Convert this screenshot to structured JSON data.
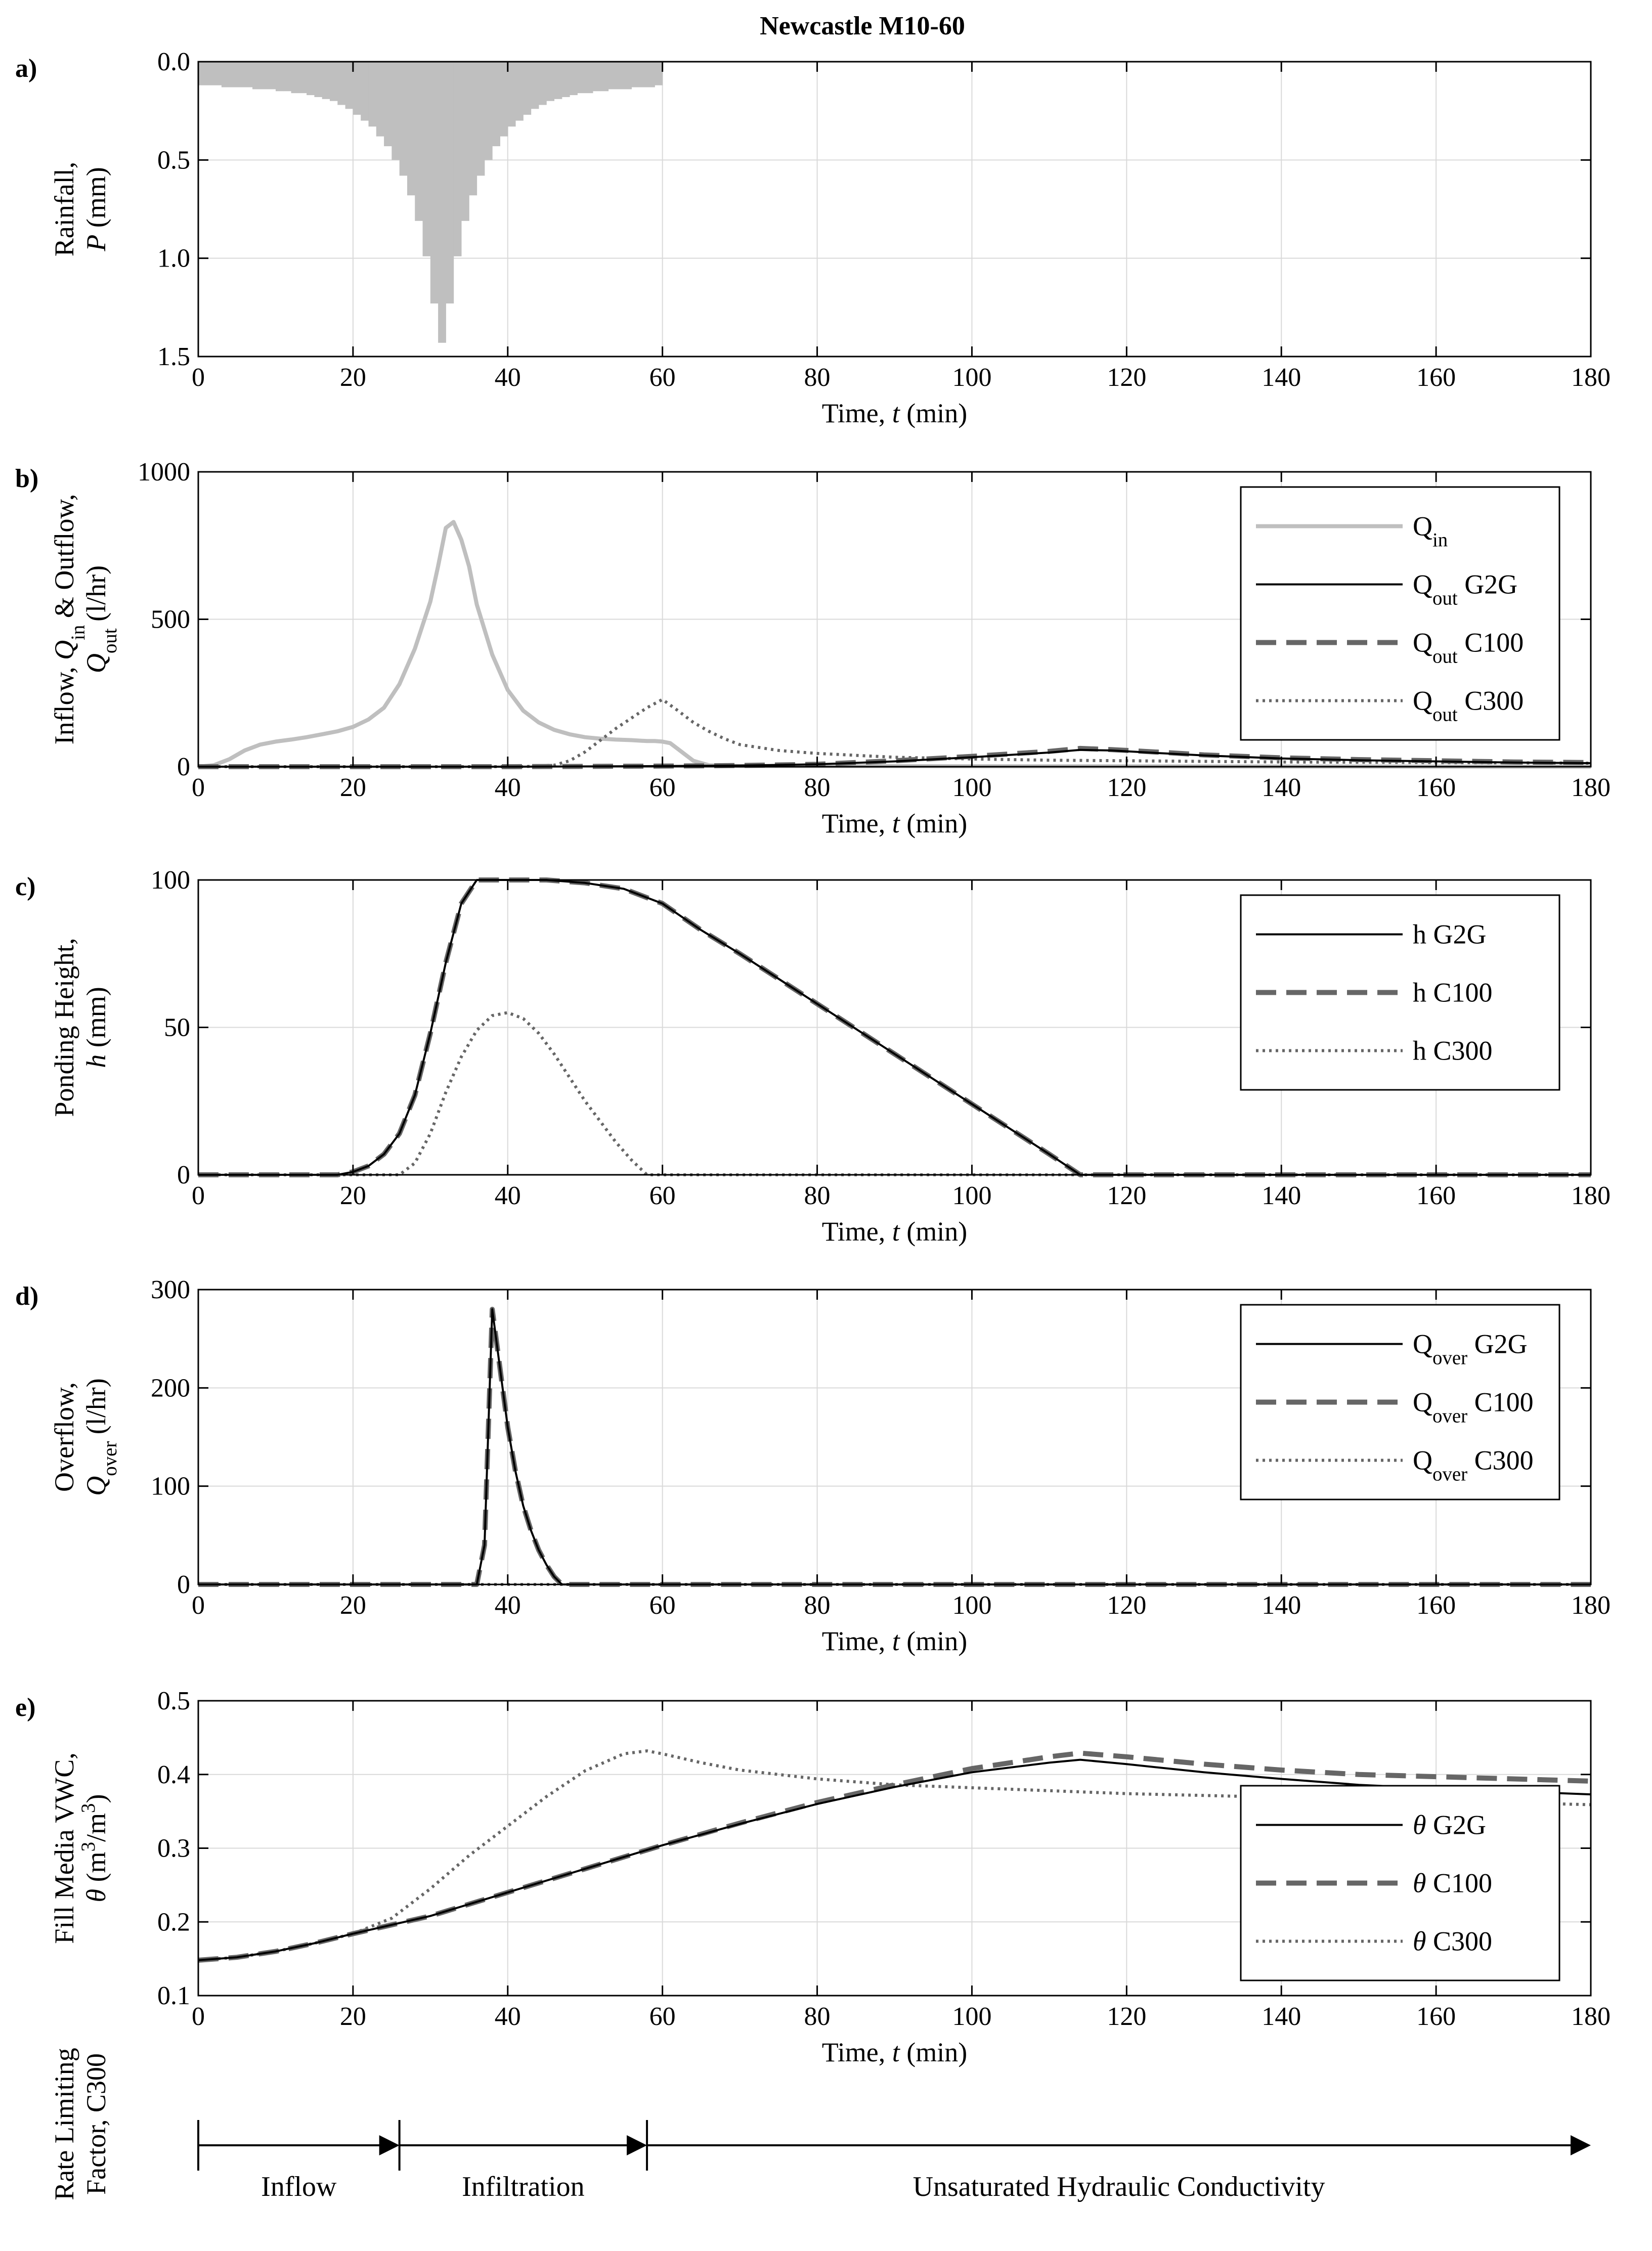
{
  "figure_title": "Newcastle M10-60",
  "colors": {
    "rain_fill": "#bfbfbf",
    "qin": "#bfbfbf",
    "g2g": "#000000",
    "c100": "#666666",
    "c300": "#666666",
    "grid": "#d9d9d9"
  },
  "x_axis": {
    "label_prefix": "Time, ",
    "label_var": "t",
    "label_suffix": " (min)",
    "range": [
      0,
      180
    ],
    "ticks": [
      0,
      20,
      40,
      60,
      80,
      100,
      120,
      140,
      160,
      180
    ]
  },
  "chart_data": [
    {
      "id": "a",
      "panel_label": "a)",
      "type": "bar",
      "ylabel_line1": "Rainfall,",
      "ylabel_var": "P",
      "ylabel_unit": " (mm)",
      "ylim": [
        0,
        1.5
      ],
      "y_reversed": true,
      "yticks": [
        "0.0",
        "0.5",
        "1.0",
        "1.5"
      ],
      "ytick_values": [
        0,
        0.5,
        1.0,
        1.5
      ],
      "bar_width_min": 1,
      "series": [
        {
          "name": "P",
          "x": [
            0,
            1,
            2,
            3,
            4,
            5,
            6,
            7,
            8,
            9,
            10,
            11,
            12,
            13,
            14,
            15,
            16,
            17,
            18,
            19,
            20,
            21,
            22,
            23,
            24,
            25,
            26,
            27,
            28,
            29,
            30,
            31,
            32,
            33,
            34,
            35,
            36,
            37,
            38,
            39,
            40,
            41,
            42,
            43,
            44,
            45,
            46,
            47,
            48,
            49,
            50,
            51,
            52,
            53,
            54,
            55,
            56,
            57,
            58,
            59
          ],
          "values": [
            0.12,
            0.12,
            0.12,
            0.13,
            0.13,
            0.13,
            0.13,
            0.14,
            0.14,
            0.14,
            0.15,
            0.15,
            0.16,
            0.16,
            0.17,
            0.18,
            0.19,
            0.2,
            0.22,
            0.24,
            0.27,
            0.3,
            0.33,
            0.38,
            0.43,
            0.5,
            0.58,
            0.68,
            0.81,
            0.99,
            1.23,
            1.43,
            1.23,
            0.99,
            0.81,
            0.68,
            0.58,
            0.5,
            0.43,
            0.38,
            0.33,
            0.3,
            0.27,
            0.24,
            0.22,
            0.2,
            0.19,
            0.18,
            0.17,
            0.16,
            0.16,
            0.15,
            0.15,
            0.14,
            0.14,
            0.14,
            0.13,
            0.13,
            0.13,
            0.12
          ]
        }
      ]
    },
    {
      "id": "b",
      "panel_label": "b)",
      "type": "line",
      "ylabel_line1": "Inflow, Q_in & Outflow,",
      "ylabel_line2": "Q_out (l/hr)",
      "ylim": [
        0,
        1000
      ],
      "yticks": [
        "0",
        "500",
        "1000"
      ],
      "ytick_values": [
        0,
        500,
        1000
      ],
      "legend": [
        {
          "main": "Q",
          "sub": "in",
          "tail": "",
          "style": "qin"
        },
        {
          "main": "Q",
          "sub": "out",
          "tail": " G2G",
          "style": "g2g"
        },
        {
          "main": "Q",
          "sub": "out",
          "tail": " C100",
          "style": "c100"
        },
        {
          "main": "Q",
          "sub": "out",
          "tail": " C300",
          "style": "c300"
        }
      ],
      "series": [
        {
          "name": "Qin",
          "style": "qin",
          "x": [
            0,
            2,
            4,
            6,
            8,
            10,
            12,
            14,
            16,
            18,
            20,
            22,
            24,
            26,
            28,
            30,
            31,
            32,
            33,
            34,
            35,
            36,
            38,
            40,
            42,
            44,
            46,
            48,
            50,
            52,
            54,
            56,
            58,
            59,
            60,
            61,
            62,
            63,
            64,
            66,
            70,
            180
          ],
          "y": [
            0,
            5,
            25,
            55,
            75,
            85,
            92,
            100,
            110,
            120,
            135,
            160,
            200,
            280,
            400,
            560,
            680,
            810,
            830,
            770,
            680,
            550,
            380,
            260,
            190,
            150,
            125,
            110,
            100,
            95,
            92,
            90,
            87,
            87,
            85,
            80,
            60,
            40,
            20,
            5,
            2,
            0
          ]
        },
        {
          "name": "Qout G2G",
          "style": "g2g",
          "x": [
            0,
            40,
            60,
            70,
            80,
            90,
            100,
            110,
            114,
            118,
            125,
            130,
            140,
            150,
            160,
            170,
            180
          ],
          "y": [
            0,
            0,
            2,
            4,
            8,
            18,
            32,
            48,
            57,
            55,
            45,
            38,
            28,
            22,
            18,
            14,
            12
          ]
        },
        {
          "name": "Qout C100",
          "style": "c100",
          "x": [
            0,
            40,
            60,
            70,
            80,
            90,
            100,
            110,
            114,
            118,
            125,
            130,
            140,
            150,
            160,
            170,
            180
          ],
          "y": [
            0,
            0,
            2,
            4,
            8,
            20,
            35,
            52,
            62,
            58,
            48,
            40,
            30,
            24,
            20,
            16,
            14
          ]
        },
        {
          "name": "Qout C300",
          "style": "c300",
          "x": [
            0,
            42,
            46,
            48,
            50,
            52,
            54,
            56,
            58,
            60,
            62,
            64,
            66,
            68,
            70,
            75,
            80,
            90,
            100,
            110,
            120,
            140,
            160,
            180
          ],
          "y": [
            0,
            0,
            5,
            20,
            50,
            90,
            130,
            165,
            200,
            228,
            190,
            150,
            120,
            95,
            75,
            55,
            45,
            32,
            26,
            22,
            20,
            16,
            14,
            12
          ]
        }
      ]
    },
    {
      "id": "c",
      "panel_label": "c)",
      "type": "line",
      "ylabel_line1": "Ponding Height,",
      "ylabel_var": "h",
      "ylabel_unit": " (mm)",
      "ylim": [
        0,
        100
      ],
      "yticks": [
        "0",
        "50",
        "100"
      ],
      "ytick_values": [
        0,
        50,
        100
      ],
      "legend": [
        {
          "main": "h",
          "sub": "",
          "tail": " G2G",
          "style": "g2g"
        },
        {
          "main": "h",
          "sub": "",
          "tail": " C100",
          "style": "c100"
        },
        {
          "main": "h",
          "sub": "",
          "tail": " C300",
          "style": "c300"
        }
      ],
      "series": [
        {
          "name": "h G2G",
          "style": "g2g",
          "x": [
            0,
            18,
            20,
            22,
            24,
            26,
            28,
            30,
            32,
            34,
            36,
            38,
            40,
            45,
            50,
            55,
            60,
            65,
            70,
            80,
            90,
            100,
            110,
            114,
            180
          ],
          "y": [
            0,
            0,
            1,
            3,
            7,
            14,
            27,
            48,
            72,
            92,
            100,
            100,
            100,
            100,
            99,
            97,
            92,
            83,
            75,
            58,
            41,
            24,
            7,
            0,
            0
          ]
        },
        {
          "name": "h C100",
          "style": "c100",
          "x": [
            0,
            18,
            20,
            22,
            24,
            26,
            28,
            30,
            32,
            34,
            36,
            38,
            40,
            45,
            50,
            55,
            60,
            65,
            70,
            80,
            90,
            100,
            110,
            114,
            180
          ],
          "y": [
            0,
            0,
            1,
            3,
            7,
            14,
            27,
            48,
            72,
            92,
            100,
            100,
            100,
            100,
            99,
            97,
            92,
            83,
            75,
            58,
            41,
            24,
            7,
            0,
            0
          ]
        },
        {
          "name": "h C300",
          "style": "c300",
          "x": [
            0,
            26,
            28,
            30,
            32,
            34,
            36,
            38,
            40,
            42,
            44,
            46,
            48,
            50,
            52,
            54,
            56,
            58,
            180
          ],
          "y": [
            0,
            0,
            4,
            14,
            28,
            40,
            49,
            54,
            55,
            53,
            48,
            41,
            33,
            25,
            18,
            11,
            5,
            0,
            0
          ]
        }
      ]
    },
    {
      "id": "d",
      "panel_label": "d)",
      "type": "line",
      "ylabel_line1": "Overflow,",
      "ylabel_line2": "Q_over (l/hr)",
      "ylim": [
        0,
        300
      ],
      "yticks": [
        "0",
        "100",
        "200",
        "300"
      ],
      "ytick_values": [
        0,
        100,
        200,
        300
      ],
      "legend": [
        {
          "main": "Q",
          "sub": "over",
          "tail": " G2G",
          "style": "g2g"
        },
        {
          "main": "Q",
          "sub": "over",
          "tail": " C100",
          "style": "c100"
        },
        {
          "main": "Q",
          "sub": "over",
          "tail": " C300",
          "style": "c300"
        }
      ],
      "series": [
        {
          "name": "Qover G2G",
          "style": "g2g",
          "x": [
            0,
            36,
            37,
            38,
            39,
            40,
            41,
            42,
            43,
            44,
            45,
            46,
            47,
            180
          ],
          "y": [
            0,
            0,
            40,
            280,
            220,
            160,
            115,
            80,
            55,
            35,
            20,
            8,
            0,
            0
          ]
        },
        {
          "name": "Qover C100",
          "style": "c100",
          "x": [
            0,
            36,
            37,
            38,
            39,
            40,
            41,
            42,
            43,
            44,
            45,
            46,
            47,
            180
          ],
          "y": [
            0,
            0,
            40,
            280,
            220,
            160,
            115,
            80,
            55,
            35,
            20,
            8,
            0,
            0
          ]
        },
        {
          "name": "Qover C300",
          "style": "c300",
          "x": [
            0,
            180
          ],
          "y": [
            0,
            0
          ]
        }
      ]
    },
    {
      "id": "e",
      "panel_label": "e)",
      "type": "line",
      "ylabel_line1": "Fill Media VWC,",
      "ylabel_line2": "θ (m3/m3)",
      "ylim": [
        0.1,
        0.5
      ],
      "yticks": [
        "0.1",
        "0.2",
        "0.3",
        "0.4",
        "0.5"
      ],
      "ytick_values": [
        0.1,
        0.2,
        0.3,
        0.4,
        0.5
      ],
      "legend": [
        {
          "main": "θ",
          "sub": "",
          "tail": " G2G",
          "style": "g2g"
        },
        {
          "main": "θ",
          "sub": "",
          "tail": " C100",
          "style": "c100"
        },
        {
          "main": "θ",
          "sub": "",
          "tail": " C300",
          "style": "c300"
        }
      ],
      "series": [
        {
          "name": "θ G2G",
          "style": "g2g",
          "x": [
            0,
            5,
            10,
            15,
            20,
            25,
            30,
            40,
            50,
            60,
            70,
            80,
            90,
            100,
            110,
            114,
            120,
            130,
            140,
            150,
            160,
            170,
            180
          ],
          "y": [
            0.148,
            0.152,
            0.16,
            0.171,
            0.184,
            0.196,
            0.208,
            0.24,
            0.272,
            0.304,
            0.333,
            0.36,
            0.383,
            0.403,
            0.416,
            0.42,
            0.414,
            0.403,
            0.394,
            0.386,
            0.381,
            0.377,
            0.373
          ]
        },
        {
          "name": "θ C100",
          "style": "c100",
          "x": [
            0,
            5,
            10,
            15,
            20,
            25,
            30,
            40,
            50,
            60,
            70,
            80,
            90,
            100,
            110,
            114,
            120,
            130,
            140,
            150,
            160,
            170,
            180
          ],
          "y": [
            0.148,
            0.152,
            0.16,
            0.171,
            0.184,
            0.196,
            0.208,
            0.24,
            0.272,
            0.304,
            0.334,
            0.362,
            0.386,
            0.408,
            0.424,
            0.429,
            0.424,
            0.414,
            0.406,
            0.4,
            0.397,
            0.394,
            0.391
          ]
        },
        {
          "name": "θ C300",
          "style": "c300",
          "x": [
            0,
            5,
            10,
            15,
            20,
            25,
            30,
            35,
            40,
            45,
            50,
            55,
            58,
            60,
            65,
            70,
            80,
            90,
            100,
            110,
            120,
            140,
            160,
            180
          ],
          "y": [
            0.148,
            0.152,
            0.16,
            0.171,
            0.184,
            0.205,
            0.245,
            0.29,
            0.33,
            0.37,
            0.405,
            0.428,
            0.432,
            0.428,
            0.416,
            0.406,
            0.394,
            0.386,
            0.382,
            0.378,
            0.374,
            0.369,
            0.364,
            0.359
          ]
        }
      ]
    }
  ],
  "rate_limiting": {
    "ylabel_line1": "Rate Limiting",
    "ylabel_line2": "Factor, C300",
    "segments": [
      {
        "label": "Inflow",
        "start": 0,
        "end": 26
      },
      {
        "label": "Infiltration",
        "start": 26,
        "end": 58
      },
      {
        "label": "Unsaturated Hydraulic Conductivity",
        "start": 58,
        "end": 180
      }
    ]
  }
}
